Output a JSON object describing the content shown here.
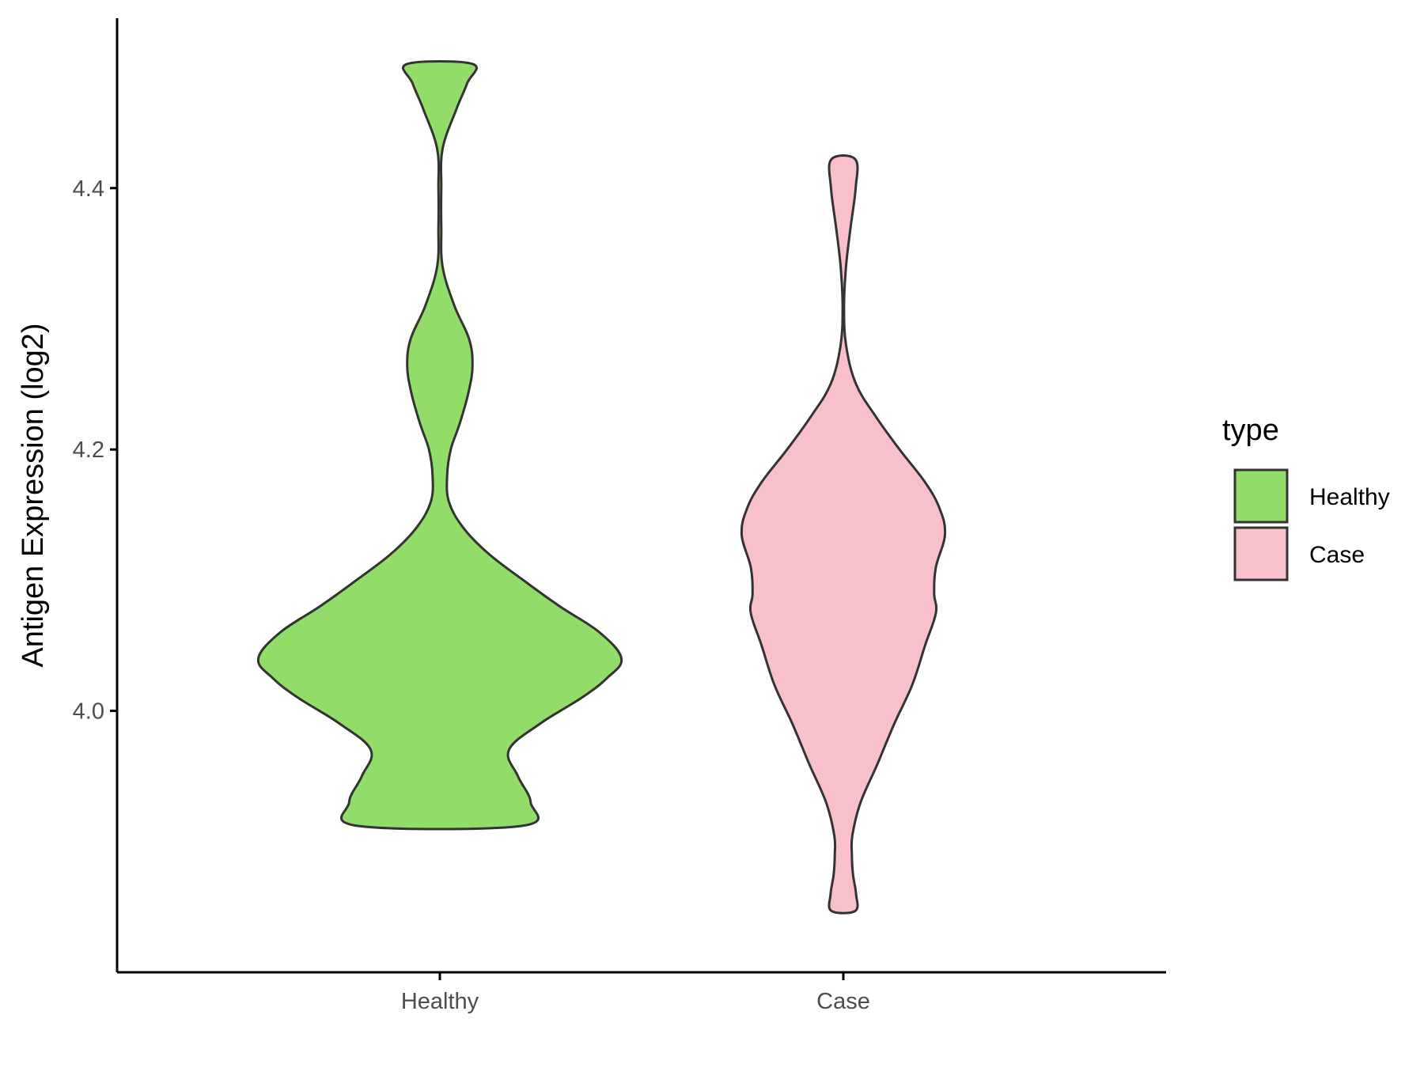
{
  "chart_data": {
    "type": "violin",
    "title": "",
    "xlabel": "",
    "ylabel": "Antigen Expression (log2)",
    "categories": [
      "Healthy",
      "Case"
    ],
    "y_ticks": [
      "4.0",
      "4.2",
      "4.4"
    ],
    "y_tick_values": [
      4.0,
      4.2,
      4.4
    ],
    "ylim": [
      3.8,
      4.53
    ],
    "grid": false,
    "legend": {
      "title": "type",
      "position": "right",
      "entries": [
        {
          "label": "Healthy",
          "color": "#92dc6a"
        },
        {
          "label": "Case",
          "color": "#f7c0cb"
        }
      ]
    },
    "outline_color": "#333333",
    "series": [
      {
        "name": "Healthy",
        "color": "#92dc6a",
        "y_min": 3.912,
        "y_max": 4.495,
        "density": [
          [
            3.912,
            0.45
          ],
          [
            3.93,
            0.5
          ],
          [
            3.95,
            0.43
          ],
          [
            3.97,
            0.38
          ],
          [
            3.99,
            0.55
          ],
          [
            4.01,
            0.78
          ],
          [
            4.025,
            0.92
          ],
          [
            4.04,
            1.0
          ],
          [
            4.06,
            0.88
          ],
          [
            4.08,
            0.66
          ],
          [
            4.1,
            0.46
          ],
          [
            4.12,
            0.27
          ],
          [
            4.14,
            0.13
          ],
          [
            4.16,
            0.05
          ],
          [
            4.18,
            0.04
          ],
          [
            4.2,
            0.06
          ],
          [
            4.22,
            0.11
          ],
          [
            4.245,
            0.16
          ],
          [
            4.265,
            0.18
          ],
          [
            4.285,
            0.16
          ],
          [
            4.31,
            0.08
          ],
          [
            4.34,
            0.015
          ],
          [
            4.37,
            0.008
          ],
          [
            4.4,
            0.008
          ],
          [
            4.43,
            0.015
          ],
          [
            4.46,
            0.09
          ],
          [
            4.48,
            0.15
          ],
          [
            4.495,
            0.18
          ]
        ]
      },
      {
        "name": "Case",
        "color": "#f7c0cb",
        "y_min": 3.847,
        "y_max": 4.422,
        "density": [
          [
            3.847,
            0.066
          ],
          [
            3.86,
            0.07
          ],
          [
            3.875,
            0.053
          ],
          [
            3.89,
            0.047
          ],
          [
            3.905,
            0.05
          ],
          [
            3.93,
            0.095
          ],
          [
            3.96,
            0.19
          ],
          [
            3.99,
            0.28
          ],
          [
            4.02,
            0.38
          ],
          [
            4.05,
            0.45
          ],
          [
            4.075,
            0.51
          ],
          [
            4.09,
            0.5
          ],
          [
            4.11,
            0.51
          ],
          [
            4.135,
            0.56
          ],
          [
            4.155,
            0.53
          ],
          [
            4.175,
            0.45
          ],
          [
            4.2,
            0.31
          ],
          [
            4.225,
            0.18
          ],
          [
            4.25,
            0.07
          ],
          [
            4.28,
            0.015
          ],
          [
            4.31,
            0.004
          ],
          [
            4.34,
            0.015
          ],
          [
            4.37,
            0.04
          ],
          [
            4.4,
            0.068
          ],
          [
            4.422,
            0.066
          ]
        ]
      }
    ]
  }
}
